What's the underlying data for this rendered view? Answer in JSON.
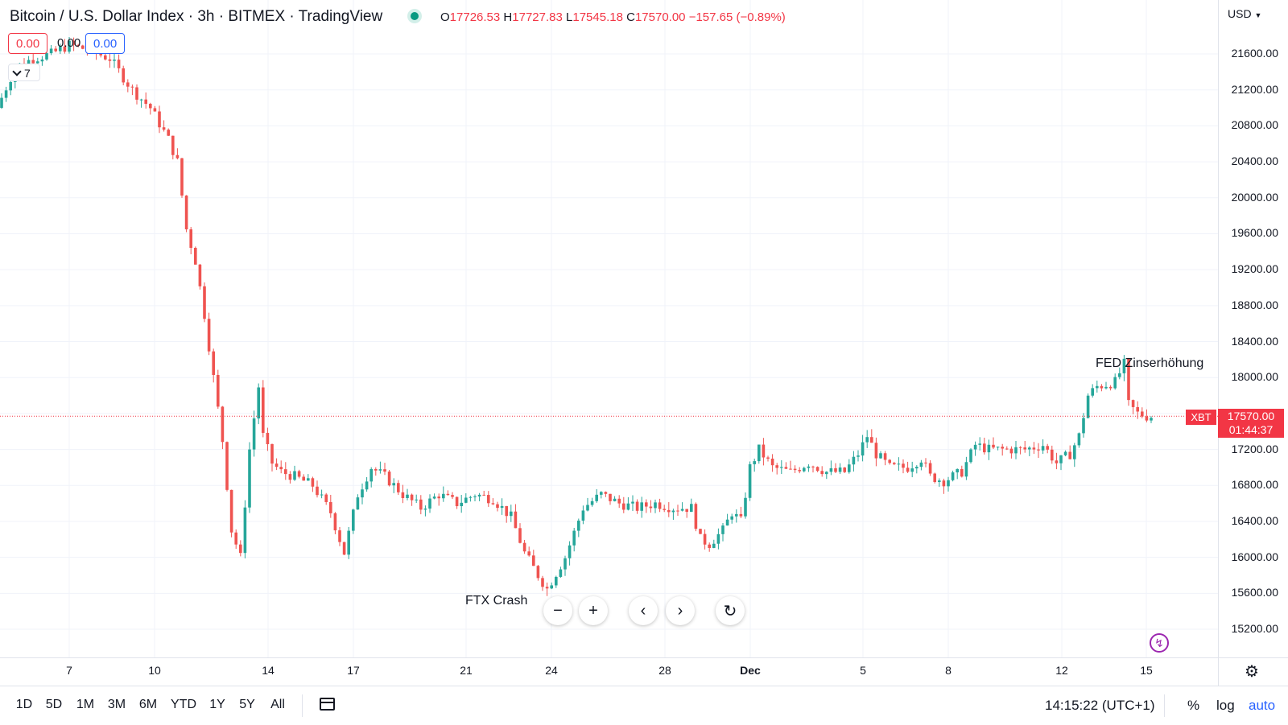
{
  "header": {
    "title": "Bitcoin / U.S. Dollar Index · 3h · BITMEX · TradingView",
    "ohlc": {
      "o_label": "O",
      "o": "17726.53",
      "h_label": "H",
      "h": "17727.83",
      "l_label": "L",
      "l": "17545.18",
      "c_label": "C",
      "c": "17570.00",
      "change": "−157.65 (−0.89%)"
    },
    "pill_sell": "0.00",
    "pill_mid": "0.00",
    "pill_buy": "0.00",
    "collapse_count": "7",
    "currency": "USD"
  },
  "price_axis": {
    "labels": [
      "21600.00",
      "21200.00",
      "20800.00",
      "20400.00",
      "20000.00",
      "19600.00",
      "19200.00",
      "18800.00",
      "18400.00",
      "18000.00",
      "17200.00",
      "16800.00",
      "16400.00",
      "16000.00",
      "15600.00",
      "15200.00"
    ],
    "current_price": "17570.00",
    "countdown": "01:44:37",
    "symbol": "XBT"
  },
  "time_axis": {
    "labels": [
      "7",
      "10",
      "14",
      "17",
      "21",
      "24",
      "28",
      "Dec",
      "5",
      "8",
      "12",
      "15"
    ]
  },
  "annotations": {
    "ftx": "FTX Crash",
    "fed": "FED Zinserhöhung"
  },
  "bottom_bar": {
    "ranges": [
      "1D",
      "5D",
      "1M",
      "3M",
      "6M",
      "YTD",
      "1Y",
      "5Y",
      "All"
    ],
    "clock": "14:15:22 (UTC+1)",
    "percent": "%",
    "log": "log",
    "auto": "auto"
  },
  "colors": {
    "up": "#26a69a",
    "down": "#ef5350",
    "accent": "#2962ff",
    "price_tag": "#f23645"
  },
  "icons": [
    "chevron-down-icon",
    "calendar-icon",
    "gear-icon",
    "lightning-icon",
    "zoom-out-icon",
    "zoom-in-icon",
    "scroll-left-icon",
    "scroll-right-icon",
    "reset-icon"
  ],
  "chart_data": {
    "type": "candlestick",
    "timeframe": "3h",
    "ylim": [
      15000,
      21900
    ],
    "path_points": [
      [
        0,
        21000
      ],
      [
        4,
        21450
      ],
      [
        8,
        21550
      ],
      [
        12,
        21600
      ],
      [
        16,
        21700
      ],
      [
        20,
        21650
      ],
      [
        25,
        21550
      ],
      [
        30,
        21200
      ],
      [
        34,
        21000
      ],
      [
        38,
        20650
      ],
      [
        40,
        20400
      ],
      [
        42,
        19650
      ],
      [
        44,
        19300
      ],
      [
        46,
        18700
      ],
      [
        48,
        18000
      ],
      [
        50,
        17300
      ],
      [
        52,
        16300
      ],
      [
        54,
        16000
      ],
      [
        56,
        17200
      ],
      [
        58,
        17900
      ],
      [
        59,
        17350
      ],
      [
        61,
        17050
      ],
      [
        63,
        16950
      ],
      [
        66,
        16900
      ],
      [
        70,
        16800
      ],
      [
        74,
        16500
      ],
      [
        77,
        16050
      ],
      [
        80,
        16700
      ],
      [
        83,
        17000
      ],
      [
        86,
        16900
      ],
      [
        90,
        16700
      ],
      [
        94,
        16550
      ],
      [
        98,
        16700
      ],
      [
        102,
        16600
      ],
      [
        106,
        16700
      ],
      [
        110,
        16650
      ],
      [
        114,
        16450
      ],
      [
        117,
        16050
      ],
      [
        120,
        15800
      ],
      [
        122,
        15650
      ],
      [
        126,
        16000
      ],
      [
        130,
        16550
      ],
      [
        134,
        16700
      ],
      [
        138,
        16600
      ],
      [
        142,
        16550
      ],
      [
        146,
        16600
      ],
      [
        150,
        16550
      ],
      [
        154,
        16550
      ],
      [
        156,
        16200
      ],
      [
        158,
        16150
      ],
      [
        161,
        16300
      ],
      [
        163,
        16500
      ],
      [
        165,
        16400
      ],
      [
        167,
        17000
      ],
      [
        169,
        17200
      ],
      [
        172,
        17000
      ],
      [
        176,
        16950
      ],
      [
        180,
        17050
      ],
      [
        184,
        16950
      ],
      [
        188,
        16950
      ],
      [
        191,
        17150
      ],
      [
        193,
        17350
      ],
      [
        195,
        17150
      ],
      [
        198,
        17000
      ],
      [
        202,
        17000
      ],
      [
        205,
        17100
      ],
      [
        207,
        16900
      ],
      [
        210,
        16850
      ],
      [
        214,
        16950
      ],
      [
        217,
        17250
      ],
      [
        220,
        17200
      ],
      [
        224,
        17200
      ],
      [
        228,
        17200
      ],
      [
        232,
        17250
      ],
      [
        235,
        17050
      ],
      [
        238,
        17150
      ],
      [
        240,
        17350
      ],
      [
        242,
        17800
      ],
      [
        244,
        17900
      ],
      [
        248,
        17950
      ],
      [
        250,
        18150
      ],
      [
        251,
        17700
      ],
      [
        253,
        17600
      ],
      [
        255,
        17570
      ]
    ]
  }
}
